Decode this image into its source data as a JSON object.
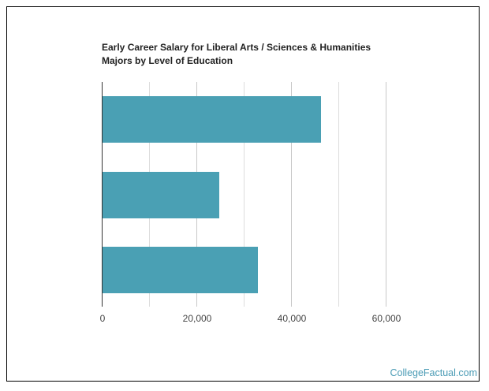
{
  "chart_data": {
    "type": "bar",
    "orientation": "horizontal",
    "title": "Early Career Salary for Liberal Arts / Sciences & Humanities Majors by Level of Education",
    "title_lines": [
      "Early Career Salary for Liberal Arts / Sciences & Humanities",
      "Majors by Level of Education"
    ],
    "categories": [
      "",
      "",
      ""
    ],
    "values": [
      46100,
      24700,
      32800
    ],
    "xlabel": "",
    "ylabel": "",
    "xlim": [
      0,
      70000
    ],
    "x_ticks": [
      0,
      20000,
      40000,
      60000
    ],
    "x_tick_labels": [
      "0",
      "20,000",
      "40,000",
      "60,000"
    ],
    "gridlines": [
      10000,
      20000,
      30000,
      40000,
      50000,
      60000
    ],
    "grid": true,
    "legend": null,
    "bar_color": "#4aa0b4"
  },
  "credit": "CollegeFactual.com"
}
